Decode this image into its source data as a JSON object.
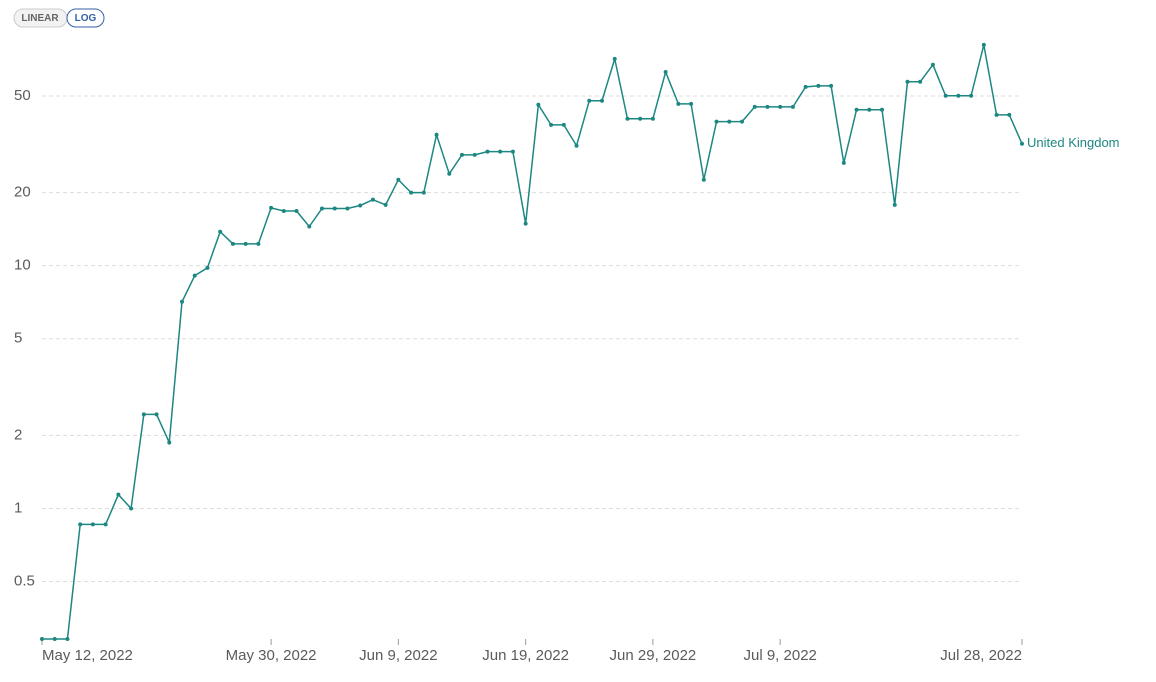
{
  "scale_toggle": {
    "options": [
      "LINEAR",
      "LOG"
    ],
    "selected": 1
  },
  "chart_data": {
    "type": "line",
    "log_scale": true,
    "grid": true,
    "x": [
      "2022-05-12",
      "2022-05-13",
      "2022-05-14",
      "2022-05-15",
      "2022-05-16",
      "2022-05-17",
      "2022-05-18",
      "2022-05-19",
      "2022-05-20",
      "2022-05-21",
      "2022-05-22",
      "2022-05-23",
      "2022-05-24",
      "2022-05-25",
      "2022-05-26",
      "2022-05-27",
      "2022-05-28",
      "2022-05-29",
      "2022-05-30",
      "2022-05-31",
      "2022-06-01",
      "2022-06-02",
      "2022-06-03",
      "2022-06-04",
      "2022-06-05",
      "2022-06-06",
      "2022-06-07",
      "2022-06-08",
      "2022-06-09",
      "2022-06-10",
      "2022-06-11",
      "2022-06-12",
      "2022-06-13",
      "2022-06-14",
      "2022-06-15",
      "2022-06-16",
      "2022-06-17",
      "2022-06-18",
      "2022-06-19",
      "2022-06-20",
      "2022-06-21",
      "2022-06-22",
      "2022-06-23",
      "2022-06-24",
      "2022-06-25",
      "2022-06-26",
      "2022-06-27",
      "2022-06-28",
      "2022-06-29",
      "2022-06-30",
      "2022-07-01",
      "2022-07-02",
      "2022-07-03",
      "2022-07-04",
      "2022-07-05",
      "2022-07-06",
      "2022-07-07",
      "2022-07-08",
      "2022-07-09",
      "2022-07-10",
      "2022-07-11",
      "2022-07-12",
      "2022-07-13",
      "2022-07-14",
      "2022-07-15",
      "2022-07-16",
      "2022-07-17",
      "2022-07-18",
      "2022-07-19",
      "2022-07-20",
      "2022-07-21",
      "2022-07-22",
      "2022-07-23",
      "2022-07-24",
      "2022-07-25",
      "2022-07-26",
      "2022-07-27",
      "2022-07-28"
    ],
    "series": [
      {
        "name": "United Kingdom",
        "color": "#1d8782",
        "values": [
          0.29,
          0.29,
          0.29,
          0.86,
          0.86,
          0.86,
          1.14,
          1.0,
          2.44,
          2.44,
          1.87,
          7.1,
          9.1,
          9.8,
          13.8,
          12.3,
          12.3,
          12.3,
          17.3,
          16.8,
          16.8,
          14.5,
          17.2,
          17.2,
          17.2,
          17.7,
          18.7,
          17.8,
          22.6,
          20.0,
          20.0,
          34.6,
          23.9,
          28.6,
          28.6,
          29.5,
          29.5,
          29.5,
          14.9,
          46.0,
          38.0,
          38.0,
          31.2,
          47.8,
          47.8,
          71.1,
          40.3,
          40.3,
          40.3,
          62.8,
          46.4,
          46.4,
          22.6,
          39.2,
          39.2,
          39.2,
          45.1,
          45.1,
          45.1,
          45.1,
          54.5,
          55.0,
          55.0,
          26.5,
          43.9,
          43.9,
          43.9,
          17.8,
          57.2,
          57.2,
          67.2,
          50.1,
          50.1,
          50.1,
          81.2,
          41.8,
          41.8,
          31.8
        ]
      }
    ],
    "xlim": [
      "2022-05-12",
      "2022-07-28"
    ],
    "xticks": [
      {
        "value": "2022-05-12",
        "label": "May 12, 2022"
      },
      {
        "value": "2022-05-30",
        "label": "May 30, 2022"
      },
      {
        "value": "2022-06-09",
        "label": "Jun 9, 2022"
      },
      {
        "value": "2022-06-19",
        "label": "Jun 19, 2022"
      },
      {
        "value": "2022-06-29",
        "label": "Jun 29, 2022"
      },
      {
        "value": "2022-07-09",
        "label": "Jul 9, 2022"
      },
      {
        "value": "2022-07-28",
        "label": "Jul 28, 2022"
      }
    ],
    "ylim": [
      0.29,
      90
    ],
    "yticks": [
      0.5,
      1,
      2,
      5,
      10,
      20,
      50
    ]
  }
}
